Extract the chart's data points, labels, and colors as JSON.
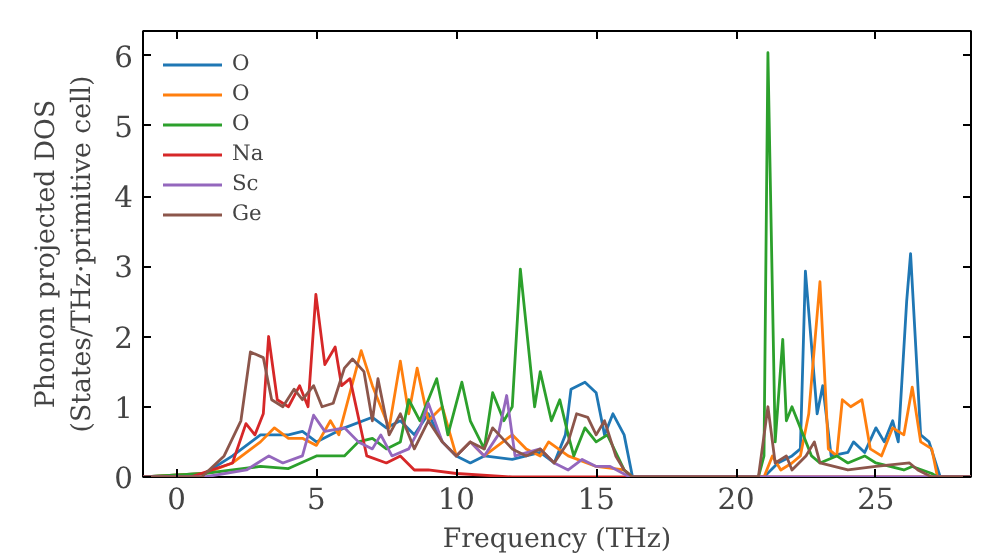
{
  "chart_data": {
    "type": "line",
    "xlabel": "Frequency (THz)",
    "ylabel": "Phonon projected DOS\n(States/THz·primitive cell)",
    "xlim": [
      -1.2,
      28.4
    ],
    "ylim": [
      0,
      6.35
    ],
    "xticks": [
      0,
      5,
      10,
      15,
      20,
      25
    ],
    "yticks": [
      0,
      1,
      2,
      3,
      4,
      5,
      6
    ],
    "grid": false,
    "legend": "top left",
    "line_style": "solid",
    "marker": "none",
    "series": [
      {
        "name": "O",
        "color": "#1f77b4",
        "x": [
          -1.2,
          1,
          2,
          3,
          4,
          4.5,
          5,
          6,
          7,
          7.5,
          8,
          8.5,
          9,
          9.5,
          10,
          10.5,
          11,
          12,
          13,
          13.5,
          13.9,
          14.1,
          14.6,
          15,
          15.3,
          15.6,
          16,
          16.3,
          21,
          21.5,
          22,
          22.3,
          22.48,
          22.9,
          23.1,
          23.4,
          24,
          24.2,
          24.6,
          25,
          25.3,
          25.6,
          25.8,
          26.1,
          26.24,
          26.6,
          26.9,
          27.3,
          28.4
        ],
        "values": [
          0,
          0.05,
          0.3,
          0.6,
          0.6,
          0.65,
          0.5,
          0.7,
          0.85,
          0.7,
          0.8,
          0.6,
          0.9,
          0.5,
          0.3,
          0.2,
          0.3,
          0.25,
          0.35,
          0.2,
          0.6,
          1.25,
          1.35,
          1.2,
          0.6,
          0.9,
          0.6,
          0,
          0,
          0.2,
          0.3,
          0.4,
          2.93,
          0.9,
          1.3,
          0.3,
          0.35,
          0.5,
          0.35,
          0.7,
          0.5,
          0.8,
          0.5,
          2.5,
          3.18,
          0.6,
          0.5,
          0,
          0
        ]
      },
      {
        "name": "O",
        "color": "#ff7f0e",
        "x": [
          -1.2,
          1,
          2,
          3,
          3.5,
          4,
          4.5,
          5,
          5.5,
          5.8,
          6.2,
          6.6,
          7,
          7.3,
          7.6,
          8,
          8.3,
          8.6,
          9,
          9.5,
          10,
          10.5,
          11,
          12,
          12.5,
          13,
          13.3,
          14,
          15,
          16,
          16.3,
          21,
          21.3,
          21.6,
          22,
          22.3,
          22.6,
          23,
          23.3,
          23.6,
          23.8,
          24.1,
          24.5,
          24.8,
          25.2,
          25.6,
          26,
          26.3,
          26.6,
          27,
          27.2,
          28.4
        ],
        "values": [
          0,
          0.05,
          0.2,
          0.5,
          0.7,
          0.55,
          0.55,
          0.45,
          0.8,
          0.6,
          1.2,
          1.8,
          1.3,
          1,
          0.7,
          1.65,
          0.9,
          1.55,
          0.8,
          1,
          0.3,
          0.5,
          0.3,
          0.6,
          0.4,
          0.3,
          0.5,
          0.3,
          0.15,
          0.1,
          0,
          0,
          0.3,
          0.1,
          0.2,
          0.3,
          0.9,
          2.78,
          0.4,
          0.3,
          1.1,
          1,
          1.1,
          0.4,
          0.3,
          0.7,
          0.6,
          1.28,
          0.5,
          0.4,
          0,
          0
        ]
      },
      {
        "name": "O",
        "color": "#2ca02c",
        "x": [
          -1.2,
          1,
          2,
          3,
          4,
          5,
          6,
          6.5,
          7,
          7.5,
          8,
          8.3,
          8.7,
          9.3,
          9.7,
          10.2,
          10.5,
          11,
          11.3,
          11.7,
          12,
          12.29,
          12.8,
          13,
          13.4,
          13.7,
          14,
          14.2,
          14.6,
          15,
          15.4,
          16,
          16.3,
          20.8,
          21,
          21.14,
          21.4,
          21.67,
          21.8,
          22,
          22.4,
          22.7,
          23,
          23.6,
          24,
          24.6,
          25,
          26,
          26.3,
          27,
          27.2,
          28.4
        ],
        "values": [
          0,
          0.05,
          0.1,
          0.15,
          0.12,
          0.3,
          0.3,
          0.5,
          0.55,
          0.4,
          0.5,
          1.1,
          0.8,
          1.4,
          0.6,
          1.35,
          0.8,
          0.4,
          1.2,
          0.8,
          1,
          2.96,
          1,
          1.5,
          0.8,
          1.1,
          0.6,
          0.3,
          0.7,
          0.5,
          0.6,
          0.1,
          0,
          0,
          0.3,
          6.04,
          0.5,
          1.96,
          0.8,
          1,
          0.6,
          0.3,
          0.2,
          0.3,
          0.2,
          0.3,
          0.2,
          0.1,
          0.15,
          0.05,
          0,
          0
        ]
      },
      {
        "name": "Na",
        "color": "#d62728",
        "x": [
          -1.2,
          0.5,
          2,
          2.48,
          2.8,
          3.1,
          3.29,
          3.6,
          4,
          4.4,
          4.7,
          4.98,
          5.3,
          5.67,
          5.9,
          6.2,
          6.8,
          7.5,
          8,
          8.5,
          9,
          10,
          12,
          28.4
        ],
        "values": [
          0,
          0,
          0.2,
          0.76,
          0.6,
          0.9,
          2,
          1.1,
          1,
          1.3,
          1,
          2.6,
          1.6,
          1.85,
          1.3,
          1.4,
          0.3,
          0.2,
          0.3,
          0.1,
          0.1,
          0.05,
          0,
          0
        ]
      },
      {
        "name": "Sc",
        "color": "#9467bd",
        "x": [
          -1.2,
          1,
          2.5,
          3.3,
          3.8,
          4.5,
          4.9,
          5.3,
          6,
          6.5,
          7,
          7.3,
          7.7,
          8.3,
          8.7,
          9,
          9.5,
          10,
          10.5,
          11,
          11.5,
          11.8,
          12.1,
          13,
          13.5,
          14,
          14.5,
          15,
          15.5,
          16.2,
          28.4
        ],
        "values": [
          0,
          0,
          0.1,
          0.3,
          0.2,
          0.3,
          0.88,
          0.65,
          0.7,
          0.5,
          0.4,
          0.6,
          0.3,
          0.4,
          0.7,
          1.05,
          0.5,
          0.3,
          0.5,
          0.3,
          0.6,
          1.16,
          0.3,
          0.4,
          0.2,
          0.1,
          0.25,
          0.15,
          0.15,
          0,
          0
        ]
      },
      {
        "name": "Ge",
        "color": "#8c564b",
        "x": [
          -1.2,
          0.9,
          1.7,
          2.3,
          2.64,
          3.1,
          3.4,
          3.8,
          4.2,
          4.5,
          4.9,
          5.2,
          5.6,
          6,
          6.29,
          6.7,
          7,
          7.2,
          7.6,
          8,
          8.5,
          9,
          9.5,
          10,
          10.5,
          11,
          11.3,
          12,
          12.5,
          13,
          13.5,
          14,
          14.3,
          14.7,
          15,
          15.3,
          15.7,
          16,
          16.3,
          20.8,
          21.14,
          21.4,
          21.8,
          22,
          22.5,
          22.8,
          23,
          24,
          25,
          26.2,
          26.5,
          27,
          28.4
        ],
        "values": [
          0,
          0,
          0.3,
          0.8,
          1.78,
          1.7,
          1.1,
          1,
          1.25,
          1.1,
          1.3,
          1,
          1.05,
          1.55,
          1.68,
          1.5,
          0.8,
          1.4,
          0.6,
          0.9,
          0.4,
          0.8,
          0.5,
          0.3,
          0.5,
          0.4,
          0.7,
          0.4,
          0.3,
          0.4,
          0.2,
          0.5,
          0.9,
          0.85,
          0.6,
          0.8,
          0.3,
          0.1,
          0,
          0,
          1,
          0.2,
          0.3,
          0.1,
          0.3,
          0.5,
          0.2,
          0.1,
          0.15,
          0.2,
          0.1,
          0,
          0
        ]
      }
    ]
  }
}
